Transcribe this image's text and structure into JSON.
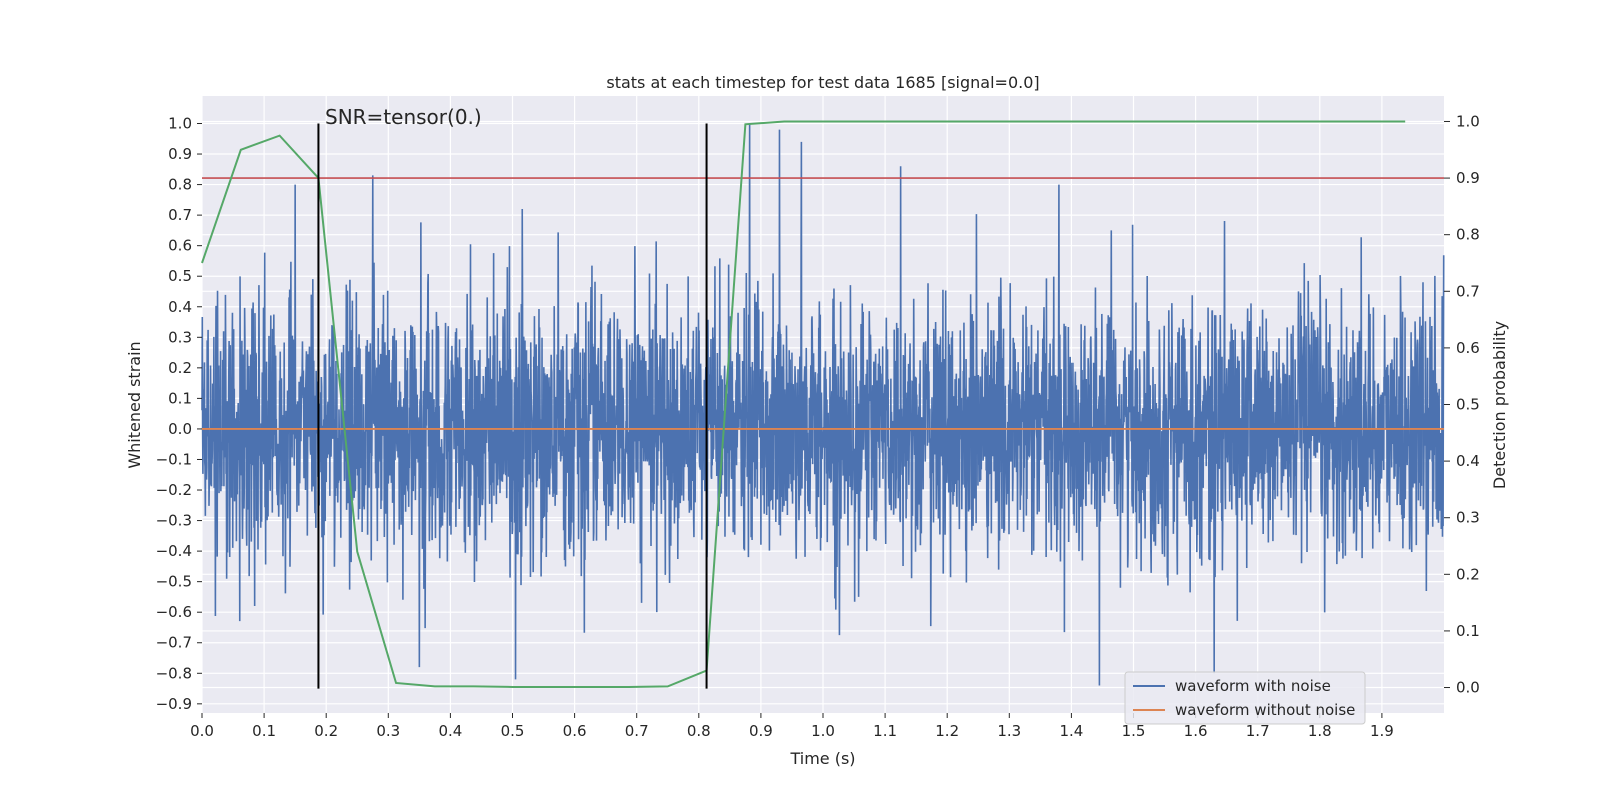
{
  "chart_data": {
    "type": "line",
    "title": "stats at each timestep for test data 1685 [signal=0.0]",
    "xlabel": "Time (s)",
    "ylabel": "Whitened strain",
    "y2label": "Detection probability",
    "annotation": "SNR=tensor(0.)",
    "xlim": [
      0.0,
      2.0
    ],
    "ylim": [
      -0.93,
      1.09
    ],
    "y2lim": [
      -0.045,
      1.045
    ],
    "xticks": [
      0.0,
      0.1,
      0.2,
      0.3,
      0.4,
      0.5,
      0.6,
      0.7,
      0.8,
      0.9,
      1.0,
      1.1,
      1.2,
      1.3,
      1.4,
      1.5,
      1.6,
      1.7,
      1.8,
      1.9
    ],
    "yticks": [
      -0.9,
      -0.8,
      -0.7,
      -0.6,
      -0.5,
      -0.4,
      -0.3,
      -0.2,
      -0.1,
      0.0,
      0.1,
      0.2,
      0.3,
      0.4,
      0.5,
      0.6,
      0.7,
      0.8,
      0.9,
      1.0
    ],
    "y2ticks": [
      0.0,
      0.1,
      0.2,
      0.3,
      0.4,
      0.5,
      0.6,
      0.7,
      0.8,
      0.9,
      1.0
    ],
    "legend_position": "lower-right",
    "legend": [
      "waveform with noise",
      "waveform without noise"
    ],
    "series": [
      {
        "name": "waveform with noise",
        "color": "#4c72b0",
        "axis": "left",
        "description": "random noise, sample rate ~2048 Hz, std ~0.2, peaks up to ~1.0 and down to ~-0.85",
        "n_points": 4080,
        "std": 0.2,
        "peaks": [
          {
            "x": 0.15,
            "y": 0.8
          },
          {
            "x": 0.275,
            "y": 0.83
          },
          {
            "x": 0.882,
            "y": 1.0
          },
          {
            "x": 0.93,
            "y": 0.98
          },
          {
            "x": 0.965,
            "y": 0.94
          },
          {
            "x": 1.125,
            "y": 0.86
          },
          {
            "x": 1.38,
            "y": 0.8
          },
          {
            "x": 1.445,
            "y": -0.84
          },
          {
            "x": 1.63,
            "y": -0.8
          },
          {
            "x": 0.505,
            "y": -0.82
          },
          {
            "x": 0.35,
            "y": -0.78
          }
        ]
      },
      {
        "name": "waveform without noise",
        "color": "#dd8452",
        "axis": "left",
        "x": [
          0.0,
          2.0
        ],
        "y": [
          0.0,
          0.0
        ]
      },
      {
        "name": "detection probability",
        "color": "#55a868",
        "axis": "right",
        "x": [
          0.0,
          0.0625,
          0.125,
          0.1875,
          0.25,
          0.3125,
          0.375,
          0.4375,
          0.5,
          0.5625,
          0.625,
          0.6875,
          0.75,
          0.8125,
          0.875,
          0.9375,
          1.0,
          1.25,
          1.5,
          1.75,
          1.9375
        ],
        "y": [
          0.75,
          0.95,
          0.975,
          0.9,
          0.24,
          0.008,
          0.002,
          0.002,
          0.001,
          0.001,
          0.001,
          0.001,
          0.002,
          0.03,
          0.995,
          1.0,
          1.0,
          1.0,
          1.0,
          1.0,
          1.0
        ]
      }
    ],
    "threshold": {
      "axis": "right",
      "value": 0.9,
      "color": "#c44e52"
    },
    "vlines": [
      {
        "x": 0.1875,
        "ymin": -0.85,
        "ymax": 1.0
      },
      {
        "x": 0.8125,
        "ymin": -0.85,
        "ymax": 1.0
      }
    ]
  }
}
